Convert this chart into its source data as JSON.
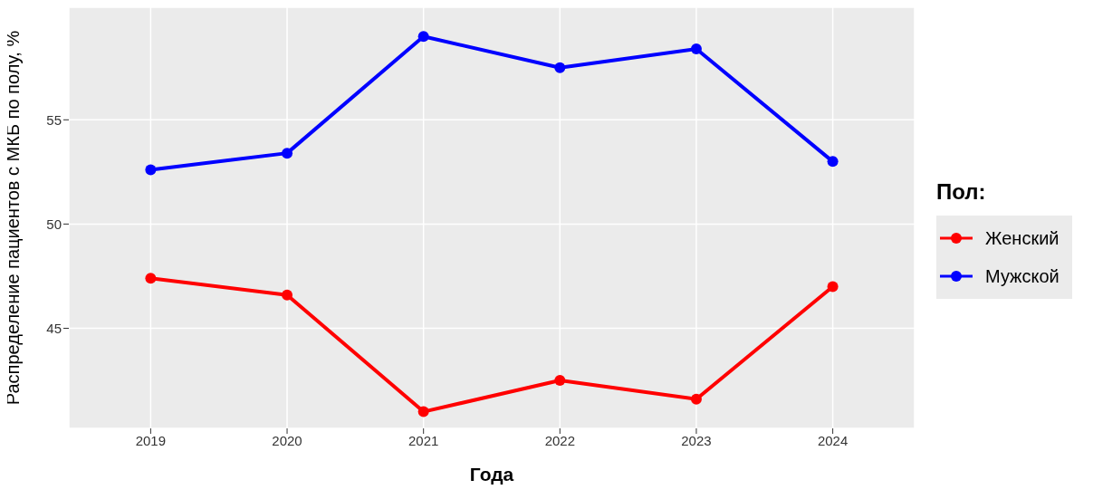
{
  "chart_data": {
    "type": "line",
    "xlabel": "Года",
    "ylabel": "Распределение пациентов с МКБ по полу, %",
    "legend_title": "Пол:",
    "categories": [
      "2019",
      "2020",
      "2021",
      "2022",
      "2023",
      "2024"
    ],
    "series": [
      {
        "name": "Женский",
        "color": "#ff0000",
        "values": [
          47.4,
          46.6,
          41.0,
          42.5,
          41.6,
          47.0
        ]
      },
      {
        "name": "Мужской",
        "color": "#0000ff",
        "values": [
          52.6,
          53.4,
          59.0,
          57.5,
          58.4,
          53.0
        ]
      }
    ],
    "ylim": [
      40.2,
      60.4
    ],
    "yticks": [
      45,
      50,
      55
    ],
    "grid": true,
    "legend": "right",
    "marker": "circle",
    "line_style": "solid"
  }
}
